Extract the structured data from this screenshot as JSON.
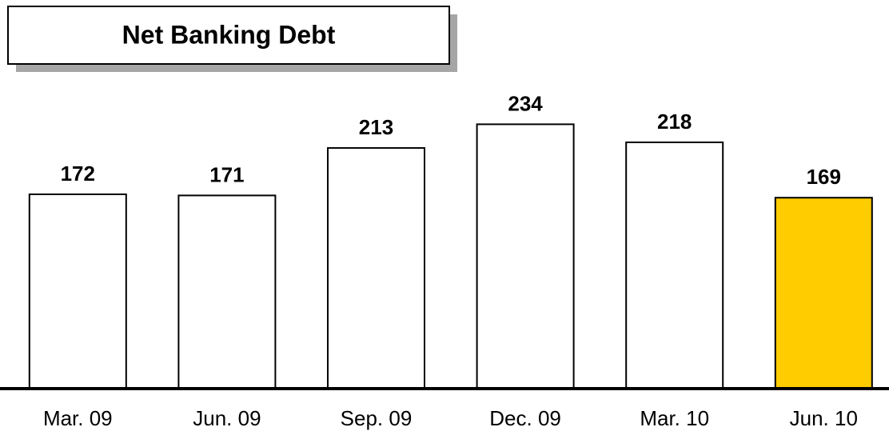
{
  "chart_data": {
    "type": "bar",
    "title": "Net Banking Debt",
    "categories": [
      "Mar. 09",
      "Jun. 09",
      "Sep. 09",
      "Dec. 09",
      "Mar. 10",
      "Jun. 10"
    ],
    "values": [
      172,
      171,
      213,
      234,
      218,
      169
    ],
    "colors": [
      "#ffffff",
      "#ffffff",
      "#ffffff",
      "#ffffff",
      "#ffffff",
      "#ffcc00"
    ],
    "ylim": [
      0,
      344
    ],
    "grid": false
  }
}
